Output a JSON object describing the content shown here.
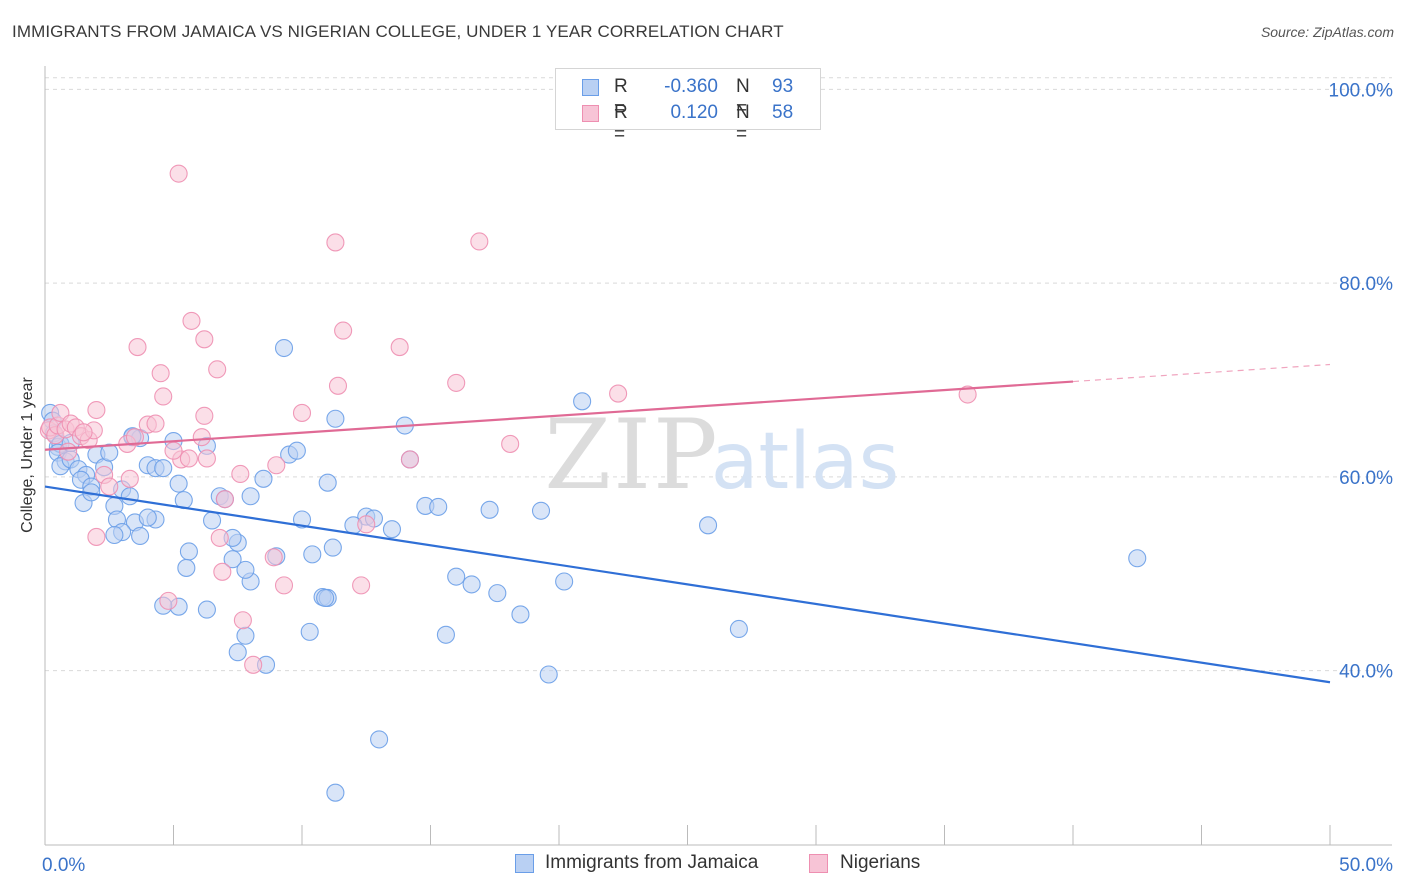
{
  "chart_data": {
    "type": "scatter",
    "title": "IMMIGRANTS FROM JAMAICA VS NIGERIAN COLLEGE, UNDER 1 YEAR CORRELATION CHART",
    "source": "Source: ZipAtlas.com",
    "xlabel": "",
    "ylabel": "College, Under 1 year",
    "xlim": [
      0,
      50
    ],
    "ylim": [
      22,
      102
    ],
    "x_tick_labels": [
      "0.0%",
      "50.0%"
    ],
    "y_ticks": [
      40,
      60,
      80,
      100
    ],
    "y_tick_labels": [
      "40.0%",
      "60.0%",
      "80.0%",
      "100.0%"
    ],
    "grid": true,
    "watermark": {
      "zip": "ZIP",
      "atlas": "atlas"
    },
    "legend_stats": [
      {
        "r_label": "R =",
        "r_value": "-0.360",
        "n_label": "N =",
        "n_value": "93"
      },
      {
        "r_label": "R =",
        "r_value": "0.120",
        "n_label": "N =",
        "n_value": "58"
      }
    ],
    "series": [
      {
        "name": "Immigrants from Jamaica",
        "color": "#6a9ee8",
        "fill": "#b9d0f3",
        "trend": {
          "x": [
            0,
            50
          ],
          "y": [
            59.0,
            38.8
          ],
          "dashed_from": null
        },
        "points": [
          [
            0.2,
            66.6
          ],
          [
            0.3,
            65.8
          ],
          [
            0.35,
            64.5
          ],
          [
            0.5,
            63.1
          ],
          [
            0.6,
            63.4
          ],
          [
            0.5,
            62.5
          ],
          [
            0.8,
            61.6
          ],
          [
            0.6,
            61.1
          ],
          [
            1.0,
            61.8
          ],
          [
            1.3,
            60.8
          ],
          [
            1.6,
            60.2
          ],
          [
            1.4,
            59.7
          ],
          [
            1.8,
            59.0
          ],
          [
            1.5,
            57.3
          ],
          [
            1.8,
            58.4
          ],
          [
            2.0,
            62.3
          ],
          [
            2.3,
            61.0
          ],
          [
            2.5,
            62.5
          ],
          [
            2.7,
            57.0
          ],
          [
            2.8,
            55.6
          ],
          [
            3.0,
            58.7
          ],
          [
            3.4,
            64.1
          ],
          [
            3.7,
            64.0
          ],
          [
            3.3,
            58.0
          ],
          [
            4.0,
            61.2
          ],
          [
            4.3,
            60.9
          ],
          [
            4.6,
            60.9
          ],
          [
            5.0,
            63.7
          ],
          [
            5.2,
            59.3
          ],
          [
            5.4,
            57.6
          ],
          [
            3.5,
            55.3
          ],
          [
            4.3,
            55.6
          ],
          [
            4.0,
            55.8
          ],
          [
            3.0,
            54.3
          ],
          [
            2.7,
            54.0
          ],
          [
            3.7,
            53.9
          ],
          [
            6.3,
            63.2
          ],
          [
            6.8,
            58.0
          ],
          [
            7.0,
            57.7
          ],
          [
            7.3,
            51.5
          ],
          [
            8.0,
            58.0
          ],
          [
            8.5,
            59.8
          ],
          [
            9.3,
            73.3
          ],
          [
            9.5,
            62.3
          ],
          [
            9.8,
            62.7
          ],
          [
            10.0,
            55.6
          ],
          [
            10.8,
            47.6
          ],
          [
            11.0,
            59.4
          ],
          [
            11.3,
            66.0
          ],
          [
            11.2,
            52.7
          ],
          [
            12.5,
            55.9
          ],
          [
            12.8,
            55.7
          ],
          [
            13.0,
            32.9
          ],
          [
            13.5,
            54.6
          ],
          [
            14.0,
            65.3
          ],
          [
            14.2,
            61.8
          ],
          [
            14.8,
            57.0
          ],
          [
            15.3,
            56.9
          ],
          [
            15.6,
            43.7
          ],
          [
            16.0,
            49.7
          ],
          [
            16.6,
            48.9
          ],
          [
            17.3,
            56.6
          ],
          [
            17.6,
            48.0
          ],
          [
            18.5,
            45.8
          ],
          [
            19.3,
            56.5
          ],
          [
            19.6,
            39.6
          ],
          [
            20.2,
            49.2
          ],
          [
            20.9,
            67.8
          ],
          [
            11.3,
            27.4
          ],
          [
            11.0,
            47.5
          ],
          [
            10.4,
            52.0
          ],
          [
            9.0,
            51.8
          ],
          [
            8.0,
            49.2
          ],
          [
            7.8,
            50.4
          ],
          [
            7.5,
            53.2
          ],
          [
            7.3,
            53.7
          ],
          [
            6.5,
            55.5
          ],
          [
            5.6,
            52.3
          ],
          [
            5.5,
            50.6
          ],
          [
            5.2,
            46.6
          ],
          [
            4.6,
            46.7
          ],
          [
            6.3,
            46.3
          ],
          [
            7.8,
            43.6
          ],
          [
            7.5,
            41.9
          ],
          [
            8.6,
            40.6
          ],
          [
            10.3,
            44.0
          ],
          [
            10.9,
            47.5
          ],
          [
            12.0,
            55.0
          ],
          [
            25.8,
            55.0
          ],
          [
            27.0,
            44.3
          ],
          [
            42.5,
            51.6
          ],
          [
            1.0,
            63.5
          ],
          [
            3.4,
            64.2
          ]
        ]
      },
      {
        "name": "Nigerians",
        "color": "#ee8fb1",
        "fill": "#f7c4d6",
        "trend": {
          "x": [
            0,
            50
          ],
          "y": [
            62.8,
            71.6
          ],
          "dashed_from": 40
        },
        "points": [
          [
            0.15,
            64.8
          ],
          [
            0.2,
            65.1
          ],
          [
            0.4,
            64.3
          ],
          [
            0.5,
            65.3
          ],
          [
            0.6,
            66.6
          ],
          [
            0.8,
            64.9
          ],
          [
            1.0,
            65.5
          ],
          [
            1.2,
            65.1
          ],
          [
            1.4,
            64.2
          ],
          [
            1.7,
            63.8
          ],
          [
            1.9,
            64.8
          ],
          [
            2.3,
            60.2
          ],
          [
            2.0,
            53.8
          ],
          [
            2.5,
            59.0
          ],
          [
            3.2,
            63.4
          ],
          [
            3.5,
            64.1
          ],
          [
            3.6,
            73.4
          ],
          [
            4.0,
            65.4
          ],
          [
            4.3,
            65.5
          ],
          [
            4.5,
            70.7
          ],
          [
            4.6,
            68.3
          ],
          [
            4.8,
            47.2
          ],
          [
            5.3,
            61.8
          ],
          [
            5.6,
            61.9
          ],
          [
            5.7,
            76.1
          ],
          [
            6.1,
            64.1
          ],
          [
            6.3,
            61.9
          ],
          [
            6.2,
            66.3
          ],
          [
            6.7,
            71.1
          ],
          [
            6.8,
            53.7
          ],
          [
            6.9,
            50.2
          ],
          [
            7.0,
            57.7
          ],
          [
            7.6,
            60.3
          ],
          [
            7.7,
            45.2
          ],
          [
            8.1,
            40.6
          ],
          [
            8.9,
            51.7
          ],
          [
            9.3,
            48.8
          ],
          [
            10.0,
            66.6
          ],
          [
            11.4,
            69.4
          ],
          [
            11.6,
            75.1
          ],
          [
            11.3,
            84.2
          ],
          [
            12.3,
            48.8
          ],
          [
            12.5,
            55.1
          ],
          [
            13.8,
            73.4
          ],
          [
            14.2,
            61.8
          ],
          [
            16.0,
            69.7
          ],
          [
            16.9,
            84.3
          ],
          [
            18.1,
            63.4
          ],
          [
            22.3,
            68.6
          ],
          [
            35.9,
            68.5
          ],
          [
            5.2,
            91.3
          ],
          [
            6.2,
            74.2
          ],
          [
            2.0,
            66.9
          ],
          [
            1.5,
            64.6
          ],
          [
            3.3,
            59.8
          ],
          [
            5.0,
            62.7
          ],
          [
            9.0,
            61.2
          ],
          [
            0.9,
            62.6
          ]
        ]
      }
    ]
  }
}
